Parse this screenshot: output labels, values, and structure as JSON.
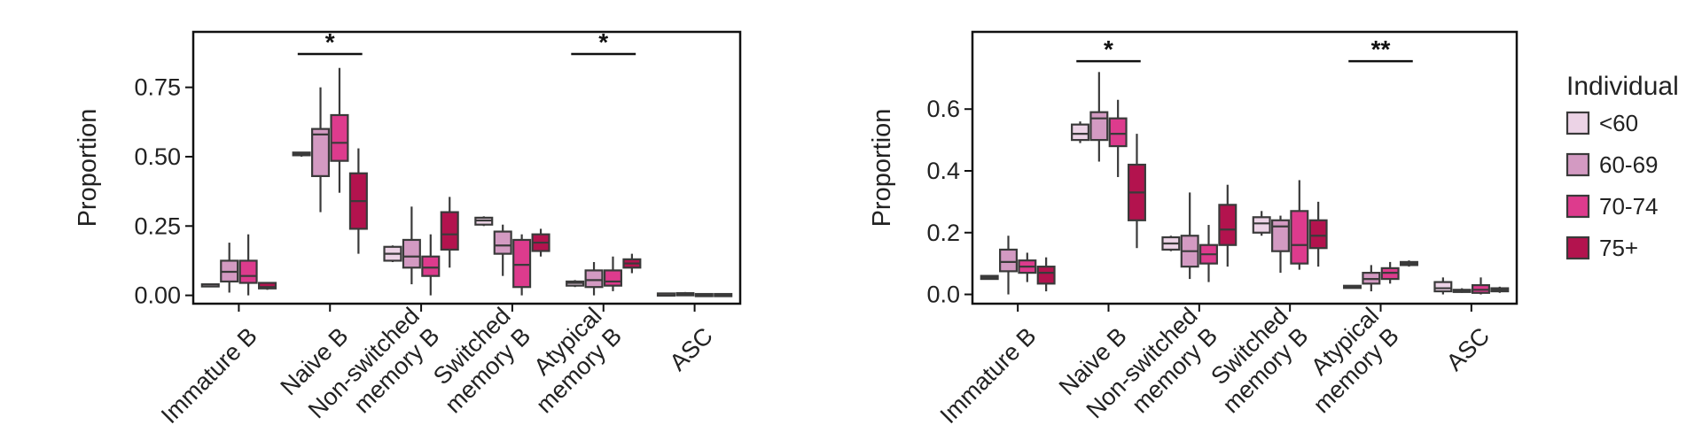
{
  "chart_data": [
    {
      "type": "box",
      "ylabel": "Proportion",
      "ylim": [
        -0.03,
        0.95
      ],
      "yticks": [
        0.0,
        0.25,
        0.5,
        0.75
      ],
      "ytick_labels": [
        "0.00",
        "0.25",
        "0.50",
        "0.75"
      ],
      "categories": [
        "Immature B",
        "Naive B",
        "Non-switched memory B",
        "Switched memory B",
        "Atypical memory B",
        "ASC"
      ],
      "category_label_lines": [
        [
          "Immature B"
        ],
        [
          "Naive B"
        ],
        [
          "Non-switched",
          "memory B"
        ],
        [
          "Switched",
          "memory B"
        ],
        [
          "Atypical",
          "memory B"
        ],
        [
          "ASC"
        ]
      ],
      "groups": [
        "<60",
        "60-69",
        "70-74",
        "75+"
      ],
      "boxes": [
        [
          {
            "min": 0.04,
            "q1": 0.04,
            "median": 0.04,
            "q3": 0.04,
            "max": 0.04
          },
          {
            "min": 0.01,
            "q1": 0.05,
            "median": 0.085,
            "q3": 0.125,
            "max": 0.19
          },
          {
            "min": 0.0,
            "q1": 0.045,
            "median": 0.07,
            "q3": 0.125,
            "max": 0.22
          },
          {
            "min": 0.02,
            "q1": 0.025,
            "median": 0.03,
            "q3": 0.045,
            "max": 0.045
          }
        ],
        [
          {
            "min": 0.5,
            "q1": 0.505,
            "median": 0.51,
            "q3": 0.515,
            "max": 0.515
          },
          {
            "min": 0.3,
            "q1": 0.43,
            "median": 0.58,
            "q3": 0.6,
            "max": 0.75
          },
          {
            "min": 0.37,
            "q1": 0.485,
            "median": 0.55,
            "q3": 0.65,
            "max": 0.82
          },
          {
            "min": 0.15,
            "q1": 0.24,
            "median": 0.34,
            "q3": 0.44,
            "max": 0.53
          }
        ],
        [
          {
            "min": 0.12,
            "q1": 0.125,
            "median": 0.15,
            "q3": 0.175,
            "max": 0.18
          },
          {
            "min": 0.04,
            "q1": 0.1,
            "median": 0.14,
            "q3": 0.2,
            "max": 0.32
          },
          {
            "min": 0.0,
            "q1": 0.07,
            "median": 0.1,
            "q3": 0.14,
            "max": 0.22
          },
          {
            "min": 0.1,
            "q1": 0.165,
            "median": 0.22,
            "q3": 0.3,
            "max": 0.355
          }
        ],
        [
          {
            "min": 0.25,
            "q1": 0.255,
            "median": 0.27,
            "q3": 0.28,
            "max": 0.285
          },
          {
            "min": 0.07,
            "q1": 0.15,
            "median": 0.18,
            "q3": 0.23,
            "max": 0.255
          },
          {
            "min": 0.0,
            "q1": 0.03,
            "median": 0.11,
            "q3": 0.2,
            "max": 0.22
          },
          {
            "min": 0.14,
            "q1": 0.16,
            "median": 0.19,
            "q3": 0.22,
            "max": 0.24
          }
        ],
        [
          {
            "min": 0.03,
            "q1": 0.035,
            "median": 0.045,
            "q3": 0.05,
            "max": 0.055
          },
          {
            "min": 0.0,
            "q1": 0.03,
            "median": 0.055,
            "q3": 0.09,
            "max": 0.12
          },
          {
            "min": 0.015,
            "q1": 0.035,
            "median": 0.05,
            "q3": 0.09,
            "max": 0.14
          },
          {
            "min": 0.08,
            "q1": 0.1,
            "median": 0.115,
            "q3": 0.13,
            "max": 0.15
          }
        ],
        [
          {
            "min": 0.004,
            "q1": 0.005,
            "median": 0.006,
            "q3": 0.007,
            "max": 0.008
          },
          {
            "min": 0.004,
            "q1": 0.005,
            "median": 0.006,
            "q3": 0.008,
            "max": 0.012
          },
          {
            "min": 0.002,
            "q1": 0.003,
            "median": 0.004,
            "q3": 0.005,
            "max": 0.006
          },
          {
            "min": 0.002,
            "q1": 0.003,
            "median": 0.004,
            "q3": 0.005,
            "max": 0.006
          }
        ]
      ],
      "significance": [
        {
          "category": 1,
          "label": "*",
          "y": 0.87
        },
        {
          "category": 4,
          "label": "*",
          "y": 0.87
        }
      ]
    },
    {
      "type": "box",
      "ylabel": "Proportion",
      "ylim": [
        -0.03,
        0.85
      ],
      "yticks": [
        0.0,
        0.2,
        0.4,
        0.6
      ],
      "ytick_labels": [
        "0.0",
        "0.2",
        "0.4",
        "0.6"
      ],
      "categories": [
        "Immature B",
        "Naive B",
        "Non-switched memory B",
        "Switched memory B",
        "Atypical memory B",
        "ASC"
      ],
      "category_label_lines": [
        [
          "Immature B"
        ],
        [
          "Naive B"
        ],
        [
          "Non-switched",
          "memory B"
        ],
        [
          "Switched",
          "memory B"
        ],
        [
          "Atypical",
          "memory B"
        ],
        [
          "ASC"
        ]
      ],
      "groups": [
        "<60",
        "60-69",
        "70-74",
        "75+"
      ],
      "boxes": [
        [
          {
            "min": 0.05,
            "q1": 0.05,
            "median": 0.055,
            "q3": 0.06,
            "max": 0.06
          },
          {
            "min": 0.0,
            "q1": 0.075,
            "median": 0.105,
            "q3": 0.145,
            "max": 0.19
          },
          {
            "min": 0.04,
            "q1": 0.07,
            "median": 0.09,
            "q3": 0.11,
            "max": 0.135
          },
          {
            "min": 0.01,
            "q1": 0.035,
            "median": 0.07,
            "q3": 0.09,
            "max": 0.12
          }
        ],
        [
          {
            "min": 0.49,
            "q1": 0.5,
            "median": 0.52,
            "q3": 0.55,
            "max": 0.56
          },
          {
            "min": 0.43,
            "q1": 0.5,
            "median": 0.57,
            "q3": 0.59,
            "max": 0.72
          },
          {
            "min": 0.38,
            "q1": 0.48,
            "median": 0.52,
            "q3": 0.57,
            "max": 0.63
          },
          {
            "min": 0.15,
            "q1": 0.24,
            "median": 0.33,
            "q3": 0.42,
            "max": 0.52
          }
        ],
        [
          {
            "min": 0.14,
            "q1": 0.145,
            "median": 0.165,
            "q3": 0.185,
            "max": 0.19
          },
          {
            "min": 0.05,
            "q1": 0.09,
            "median": 0.14,
            "q3": 0.19,
            "max": 0.33
          },
          {
            "min": 0.04,
            "q1": 0.1,
            "median": 0.13,
            "q3": 0.16,
            "max": 0.225
          },
          {
            "min": 0.09,
            "q1": 0.16,
            "median": 0.21,
            "q3": 0.29,
            "max": 0.355
          }
        ],
        [
          {
            "min": 0.19,
            "q1": 0.2,
            "median": 0.23,
            "q3": 0.25,
            "max": 0.27
          },
          {
            "min": 0.07,
            "q1": 0.14,
            "median": 0.22,
            "q3": 0.24,
            "max": 0.255
          },
          {
            "min": 0.08,
            "q1": 0.1,
            "median": 0.16,
            "q3": 0.27,
            "max": 0.37
          },
          {
            "min": 0.09,
            "q1": 0.15,
            "median": 0.19,
            "q3": 0.24,
            "max": 0.3
          }
        ],
        [
          {
            "min": 0.02,
            "q1": 0.022,
            "median": 0.025,
            "q3": 0.028,
            "max": 0.03
          },
          {
            "min": 0.01,
            "q1": 0.035,
            "median": 0.05,
            "q3": 0.07,
            "max": 0.095
          },
          {
            "min": 0.035,
            "q1": 0.05,
            "median": 0.07,
            "q3": 0.085,
            "max": 0.105
          },
          {
            "min": 0.09,
            "q1": 0.095,
            "median": 0.1,
            "q3": 0.105,
            "max": 0.11
          }
        ],
        [
          {
            "min": 0.0,
            "q1": 0.01,
            "median": 0.02,
            "q3": 0.04,
            "max": 0.055
          },
          {
            "min": 0.005,
            "q1": 0.008,
            "median": 0.01,
            "q3": 0.015,
            "max": 0.02
          },
          {
            "min": 0.0,
            "q1": 0.005,
            "median": 0.015,
            "q3": 0.03,
            "max": 0.055
          },
          {
            "min": 0.005,
            "q1": 0.01,
            "median": 0.015,
            "q3": 0.02,
            "max": 0.025
          }
        ]
      ],
      "significance": [
        {
          "category": 1,
          "label": "*",
          "y": 0.755
        },
        {
          "category": 4,
          "label": "**",
          "y": 0.755
        }
      ]
    }
  ],
  "legend": {
    "title": "Individual",
    "entries": [
      {
        "label": "<60",
        "color": "#ecd3e6"
      },
      {
        "label": "60-69",
        "color": "#d39ac2"
      },
      {
        "label": "70-74",
        "color": "#dd3b8d"
      },
      {
        "label": "75+",
        "color": "#b3134e"
      }
    ],
    "placement": "right"
  },
  "colors": {
    "groups": [
      "#ecd3e6",
      "#d39ac2",
      "#dd3b8d",
      "#b3134e"
    ],
    "box_stroke": "#3a3a3a",
    "axes": "#111111"
  }
}
